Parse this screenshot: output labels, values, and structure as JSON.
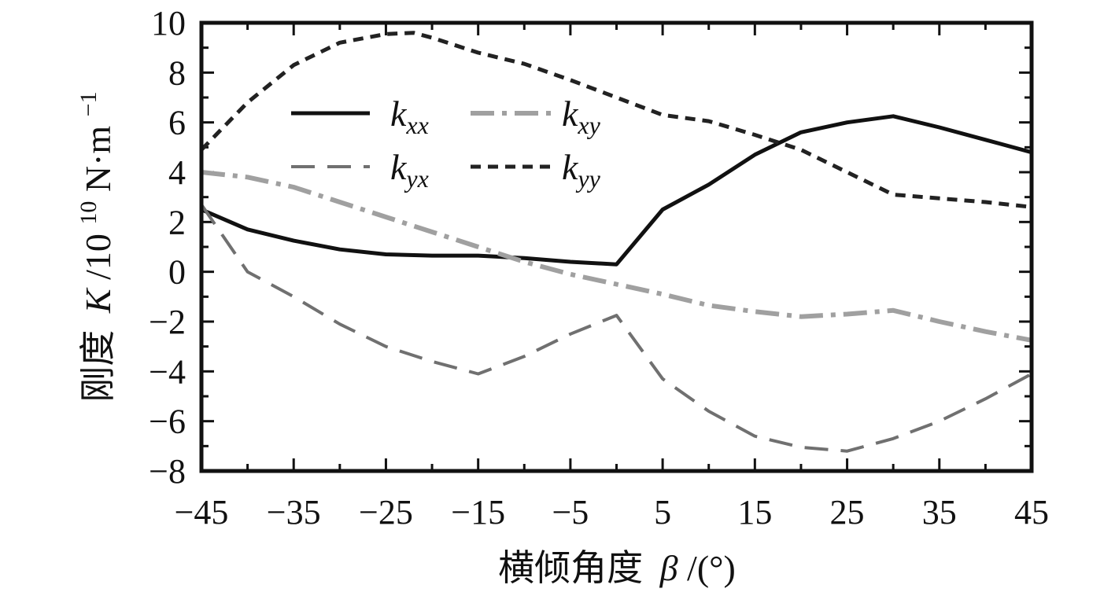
{
  "chart_data": {
    "type": "line",
    "xlabel_prefix": "横倾角度",
    "xlabel_symbol": "β",
    "xlabel_unit": "/(°)",
    "ylabel_prefix": "刚度",
    "ylabel_symbol": "K",
    "ylabel_unit_base": "/10",
    "ylabel_unit_exp": "10",
    "ylabel_unit_tail": " N·m",
    "ylabel_unit_tail_exp": "−1",
    "xlim": [
      -45,
      45
    ],
    "ylim": [
      -8,
      10
    ],
    "xticks": [
      -45,
      -35,
      -25,
      -15,
      -5,
      5,
      15,
      25,
      35,
      45
    ],
    "xtick_labels": [
      "−45",
      "−35",
      "−25",
      "−15",
      "−5",
      "5",
      "15",
      "25",
      "35",
      "45"
    ],
    "yticks": [
      -8,
      -6,
      -4,
      -2,
      0,
      2,
      4,
      6,
      8,
      10
    ],
    "ytick_labels": [
      "−8",
      "−6",
      "−4",
      "−2",
      "0",
      "2",
      "4",
      "6",
      "8",
      "10"
    ],
    "legend_position": "upper-left, two columns",
    "series": [
      {
        "name": "k",
        "name_sub": "xx",
        "color": "#111111",
        "dash": "solid",
        "x": [
          -45,
          -40,
          -35,
          -30,
          -25,
          -20,
          -15,
          -10,
          -5,
          0,
          5,
          10,
          15,
          20,
          25,
          30,
          35,
          40,
          45
        ],
        "y": [
          2.5,
          1.7,
          1.25,
          0.9,
          0.7,
          0.65,
          0.65,
          0.55,
          0.4,
          0.3,
          2.5,
          3.5,
          4.7,
          5.6,
          6.0,
          6.25,
          5.8,
          5.3,
          4.8
        ]
      },
      {
        "name": "k",
        "name_sub": "xy",
        "color": "#a0a0a0",
        "dash": "dashdot",
        "x": [
          -45,
          -40,
          -35,
          -30,
          -25,
          -20,
          -15,
          -10,
          -5,
          0,
          5,
          10,
          15,
          20,
          25,
          30,
          35,
          40,
          45
        ],
        "y": [
          4.0,
          3.8,
          3.4,
          2.8,
          2.2,
          1.6,
          1.0,
          0.4,
          -0.1,
          -0.5,
          -0.9,
          -1.35,
          -1.6,
          -1.8,
          -1.7,
          -1.55,
          -2.0,
          -2.4,
          -2.75
        ]
      },
      {
        "name": "k",
        "name_sub": "yx",
        "color": "#707070",
        "dash": "longdash",
        "x": [
          -45,
          -40,
          -35,
          -30,
          -25,
          -20,
          -15,
          -10,
          -5,
          0,
          5,
          10,
          15,
          20,
          25,
          30,
          35,
          40,
          45
        ],
        "y": [
          2.7,
          0.0,
          -1.0,
          -2.1,
          -3.0,
          -3.6,
          -4.1,
          -3.4,
          -2.5,
          -1.75,
          -4.3,
          -5.6,
          -6.6,
          -7.05,
          -7.2,
          -6.7,
          -6.0,
          -5.1,
          -4.1
        ]
      },
      {
        "name": "k",
        "name_sub": "yy",
        "color": "#222222",
        "dash": "shortdash",
        "x": [
          -45,
          -40,
          -35,
          -30,
          -25,
          -22,
          -20,
          -15,
          -10,
          -5,
          0,
          5,
          10,
          15,
          20,
          25,
          30,
          35,
          40,
          45
        ],
        "y": [
          4.9,
          6.8,
          8.3,
          9.2,
          9.55,
          9.6,
          9.4,
          8.8,
          8.35,
          7.7,
          7.0,
          6.3,
          6.05,
          5.5,
          4.9,
          4.0,
          3.1,
          2.95,
          2.8,
          2.6
        ]
      }
    ]
  }
}
